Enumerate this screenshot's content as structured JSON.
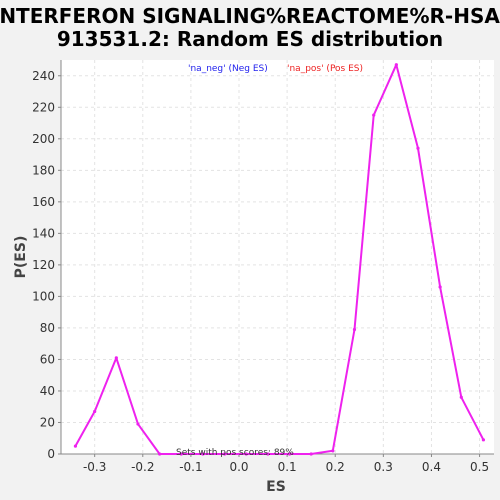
{
  "chart_data": {
    "type": "line",
    "title_lines": [
      "INTERFERON SIGNALING%REACTOME%R-HSA-",
      "913531.2: Random ES distribution"
    ],
    "xlabel": "ES",
    "ylabel": "P(ES)",
    "xlim": [
      -0.37,
      0.53
    ],
    "ylim": [
      0,
      250
    ],
    "x_ticks": [
      -0.3,
      -0.2,
      -0.1,
      0.0,
      0.1,
      0.2,
      0.3,
      0.4,
      0.5
    ],
    "x_tick_labels": [
      "-0.3",
      "-0.2",
      "-0.1",
      "0.0",
      "0.1",
      "0.2",
      "0.3",
      "0.4",
      "0.5"
    ],
    "y_ticks": [
      0,
      20,
      40,
      60,
      80,
      100,
      120,
      140,
      160,
      180,
      200,
      220,
      240
    ],
    "y_tick_labels": [
      "0",
      "20",
      "40",
      "60",
      "80",
      "100",
      "120",
      "140",
      "160",
      "180",
      "200",
      "220",
      "240"
    ],
    "grid": true,
    "legend_placement": "top-center",
    "legend": [
      {
        "text": "'na_neg' (Neg ES)",
        "color": "#2222ee"
      },
      {
        "text": "'na_pos' (Pos ES)",
        "color": "#ee2222"
      }
    ],
    "annotation": "Sets with pos scores: 89%",
    "series": [
      {
        "color": "#ee22ee",
        "points": [
          [
            -0.34,
            5
          ],
          [
            -0.3,
            27
          ],
          [
            -0.255,
            61
          ],
          [
            -0.21,
            19
          ],
          [
            -0.165,
            0
          ],
          [
            -0.12,
            0
          ],
          [
            -0.075,
            0
          ],
          [
            -0.03,
            0
          ],
          [
            0.015,
            0
          ],
          [
            0.06,
            0
          ],
          [
            0.105,
            0
          ],
          [
            0.15,
            0
          ],
          [
            0.195,
            2
          ],
          [
            0.24,
            79
          ],
          [
            0.28,
            215
          ],
          [
            0.327,
            247
          ],
          [
            0.372,
            194
          ],
          [
            0.418,
            106
          ],
          [
            0.462,
            36
          ],
          [
            0.508,
            9
          ]
        ]
      }
    ]
  }
}
